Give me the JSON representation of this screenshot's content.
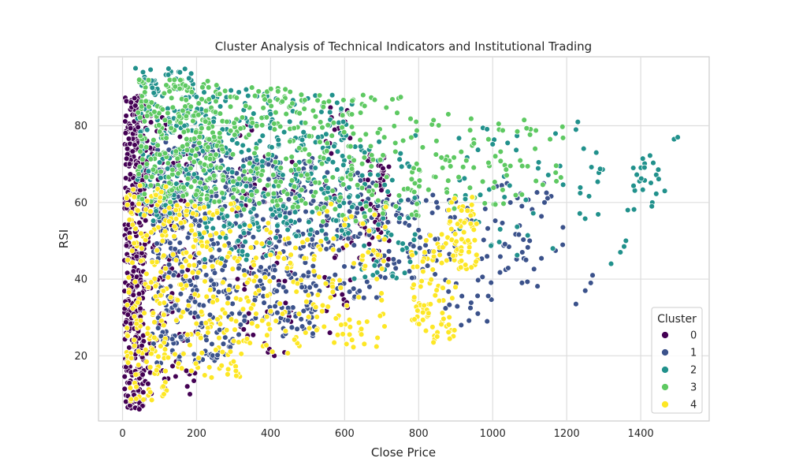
{
  "chart_data": {
    "type": "scatter",
    "title": "Cluster Analysis of Technical Indicators and Institutional Trading",
    "xlabel": "Close Price",
    "ylabel": "RSI",
    "xlim": [
      -65,
      1585
    ],
    "ylim": [
      3,
      98
    ],
    "x_ticks": [
      0,
      200,
      400,
      600,
      800,
      1000,
      1200,
      1400
    ],
    "y_ticks": [
      20,
      40,
      60,
      80
    ],
    "grid": true,
    "legend_title": "Cluster",
    "legend_position": "lower-right",
    "series": [
      {
        "name": "0",
        "color": "#440154",
        "regions": [
          {
            "x": [
              5,
              60
            ],
            "y": [
              6,
              88
            ],
            "n": 420
          },
          {
            "x": [
              60,
              140
            ],
            "y": [
              10,
              85
            ],
            "n": 110
          },
          {
            "x": [
              140,
              200
            ],
            "y": [
              10,
              80
            ],
            "n": 50
          },
          {
            "x": [
              300,
              360
            ],
            "y": [
              25,
              82
            ],
            "n": 30
          },
          {
            "x": [
              380,
              470
            ],
            "y": [
              20,
              75
            ],
            "n": 30
          },
          {
            "x": [
              540,
              620
            ],
            "y": [
              30,
              85
            ],
            "n": 40
          },
          {
            "x": [
              640,
              720
            ],
            "y": [
              45,
              75
            ],
            "n": 70
          }
        ],
        "points": [
          [
            20,
            7
          ],
          [
            182,
            10
          ],
          [
            175,
            12
          ],
          [
            410,
            20
          ],
          [
            560,
            26
          ],
          [
            580,
            30
          ]
        ]
      },
      {
        "name": "1",
        "color": "#3b528b",
        "regions": [
          {
            "x": [
              80,
              300
            ],
            "y": [
              18,
              76
            ],
            "n": 380
          },
          {
            "x": [
              300,
              520
            ],
            "y": [
              25,
              72
            ],
            "n": 260
          },
          {
            "x": [
              520,
              700
            ],
            "y": [
              35,
              68
            ],
            "n": 90
          },
          {
            "x": [
              700,
              860
            ],
            "y": [
              40,
              62
            ],
            "n": 60
          },
          {
            "x": [
              860,
              1000
            ],
            "y": [
              28,
              62
            ],
            "n": 40
          },
          {
            "x": [
              1000,
              1200
            ],
            "y": [
              38,
              66
            ],
            "n": 40
          }
        ],
        "points": [
          [
            1225,
            33.5
          ],
          [
            1265,
            39
          ],
          [
            1270,
            41
          ],
          [
            1250,
            37
          ],
          [
            985,
            29
          ],
          [
            960,
            31
          ],
          [
            915,
            28
          ],
          [
            1100,
            50
          ],
          [
            1080,
            47
          ],
          [
            1140,
            60
          ]
        ]
      },
      {
        "name": "2",
        "color": "#21918c",
        "regions": [
          {
            "x": [
              40,
              200
            ],
            "y": [
              55,
              95
            ],
            "n": 160
          },
          {
            "x": [
              200,
              420
            ],
            "y": [
              45,
              90
            ],
            "n": 200
          },
          {
            "x": [
              420,
              620
            ],
            "y": [
              50,
              88
            ],
            "n": 140
          },
          {
            "x": [
              620,
              800
            ],
            "y": [
              40,
              78
            ],
            "n": 70
          },
          {
            "x": [
              900,
              1200
            ],
            "y": [
              45,
              80
            ],
            "n": 40
          },
          {
            "x": [
              1230,
              1300
            ],
            "y": [
              55,
              78
            ],
            "n": 12
          },
          {
            "x": [
              1380,
              1450
            ],
            "y": [
              57,
              73
            ],
            "n": 20
          }
        ],
        "points": [
          [
            35,
            95
          ],
          [
            1490,
            76.5
          ],
          [
            1500,
            77
          ],
          [
            1465,
            63
          ],
          [
            1430,
            59
          ],
          [
            1345,
            47
          ],
          [
            1355,
            48.5
          ],
          [
            1360,
            50
          ],
          [
            1365,
            58
          ],
          [
            1380,
            69
          ],
          [
            1320,
            44
          ],
          [
            1280,
            73
          ],
          [
            1230,
            81
          ],
          [
            1225,
            79
          ]
        ]
      },
      {
        "name": "3",
        "color": "#5ec962",
        "regions": [
          {
            "x": [
              40,
              260
            ],
            "y": [
              60,
              92
            ],
            "n": 260
          },
          {
            "x": [
              260,
              520
            ],
            "y": [
              58,
              90
            ],
            "n": 160
          },
          {
            "x": [
              520,
              800
            ],
            "y": [
              55,
              88
            ],
            "n": 120
          },
          {
            "x": [
              800,
              1050
            ],
            "y": [
              58,
              82
            ],
            "n": 60
          },
          {
            "x": [
              1050,
              1200
            ],
            "y": [
              60,
              80
            ],
            "n": 20
          }
        ],
        "points": [
          [
            45,
            92
          ],
          [
            140,
            92
          ],
          [
            1085,
            81.5
          ],
          [
            880,
            83
          ],
          [
            420,
            89
          ],
          [
            650,
            88
          ]
        ]
      },
      {
        "name": "4",
        "color": "#fde725",
        "regions": [
          {
            "x": [
              10,
              120
            ],
            "y": [
              8,
              65
            ],
            "n": 160
          },
          {
            "x": [
              120,
              330
            ],
            "y": [
              14,
              60
            ],
            "n": 160
          },
          {
            "x": [
              330,
              520
            ],
            "y": [
              20,
              55
            ],
            "n": 80
          },
          {
            "x": [
              520,
              720
            ],
            "y": [
              22,
              60
            ],
            "n": 80
          },
          {
            "x": [
              780,
              900
            ],
            "y": [
              24,
              52
            ],
            "n": 80
          },
          {
            "x": [
              880,
              960
            ],
            "y": [
              42,
              62
            ],
            "n": 60
          }
        ],
        "points": [
          [
            840,
            23.5
          ],
          [
            850,
            25
          ],
          [
            700,
            34.5
          ],
          [
            645,
            27
          ],
          [
            300,
            18.5
          ],
          [
            270,
            21
          ],
          [
            110,
            12
          ]
        ]
      }
    ]
  }
}
